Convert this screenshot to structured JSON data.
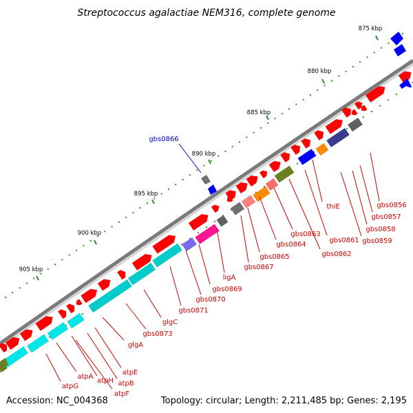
{
  "title": "Streptococcus agalactiae NEM316, complete genome",
  "footer": {
    "accession": "Accession: NC_004368",
    "summary": "Topology: circular; Length: 2,211,485 bp; Genes: 2,195"
  },
  "colors": {
    "backbone": "#808080",
    "tick_green": "#2e8b2e",
    "cds_red": "#ff0000",
    "gene_cyan": "#00e5e5",
    "label_red": "#cc0000",
    "label_blue": "#0000cc",
    "blue_feature": "#0000ff",
    "gray_feature": "#707070"
  },
  "scale_labels": [
    "875 kbp",
    "880 kbp",
    "885 kbp",
    "890 kbp",
    "895 kbp",
    "900 kbp",
    "905 kbp"
  ],
  "gene_labels": [
    {
      "text": "gbs0856",
      "color": "label_red"
    },
    {
      "text": "gbs0857",
      "color": "label_red"
    },
    {
      "text": "gbs0858",
      "color": "label_red"
    },
    {
      "text": "gbs0859",
      "color": "label_red"
    },
    {
      "text": "thiE",
      "color": "label_red"
    },
    {
      "text": "gbs0861",
      "color": "label_red"
    },
    {
      "text": "gbs0862",
      "color": "label_red"
    },
    {
      "text": "gbs0863",
      "color": "label_red"
    },
    {
      "text": "gbs0864",
      "color": "label_red"
    },
    {
      "text": "gbs0865",
      "color": "label_red"
    },
    {
      "text": "gbs0867",
      "color": "label_red"
    },
    {
      "text": "ligA",
      "color": "label_red"
    },
    {
      "text": "gbs0869",
      "color": "label_red"
    },
    {
      "text": "gbs0870",
      "color": "label_red"
    },
    {
      "text": "gbs0871",
      "color": "label_red"
    },
    {
      "text": "glgC",
      "color": "label_red"
    },
    {
      "text": "gbs0873",
      "color": "label_red"
    },
    {
      "text": "glgA",
      "color": "label_red"
    },
    {
      "text": "atpE",
      "color": "label_red"
    },
    {
      "text": "atpB",
      "color": "label_red"
    },
    {
      "text": "atpF",
      "color": "label_red"
    },
    {
      "text": "atpH",
      "color": "label_red"
    },
    {
      "text": "atpA",
      "color": "label_red"
    },
    {
      "text": "atpG",
      "color": "label_red"
    },
    {
      "text": "gbs0866",
      "color": "label_blue"
    }
  ]
}
